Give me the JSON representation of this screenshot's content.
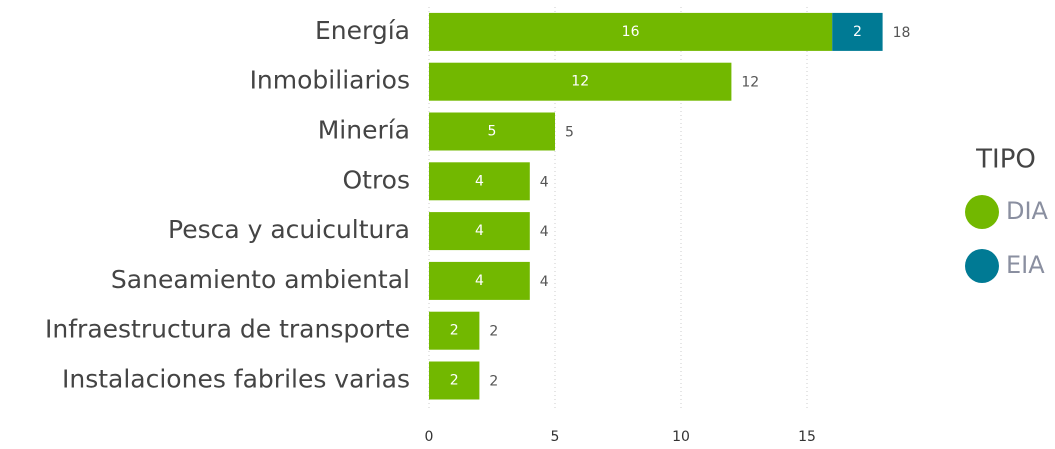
{
  "chart_data": {
    "type": "stacked_barh",
    "categories": [
      "Energía",
      "Inmobiliarios",
      "Minería",
      "Otros",
      "Pesca y acuicultura",
      "Saneamiento ambiental",
      "Infraestructura de transporte",
      "Instalaciones fabriles varias"
    ],
    "series": [
      {
        "name": "DIA",
        "color": "#72b800",
        "values": [
          16,
          12,
          5,
          4,
          4,
          4,
          2,
          2
        ]
      },
      {
        "name": "EIA",
        "color": "#007a94",
        "values": [
          2,
          null,
          null,
          null,
          null,
          null,
          null,
          null
        ]
      }
    ],
    "totals": [
      18,
      12,
      5,
      4,
      4,
      4,
      2,
      2
    ],
    "xlim": [
      0,
      20
    ],
    "xticks": [
      0,
      5,
      10,
      15
    ],
    "grid": true,
    "legend_title": "TIPO",
    "legend_position": "right"
  }
}
